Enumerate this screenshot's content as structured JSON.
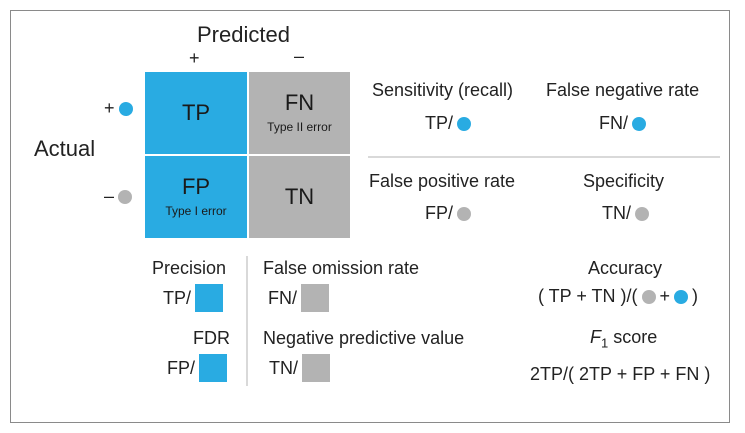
{
  "colors": {
    "positive": "#29abe2",
    "negative": "#b3b3b3",
    "divider": "#d9d9d9"
  },
  "matrix": {
    "predicted_label": "Predicted",
    "actual_label": "Actual",
    "pred_plus": "+",
    "pred_minus": "–",
    "act_plus": "+",
    "act_minus": "–",
    "cells": {
      "tp": {
        "label": "TP",
        "sublabel": ""
      },
      "fn": {
        "label": "FN",
        "sublabel": "Type II error"
      },
      "fp": {
        "label": "FP",
        "sublabel": "Type I error"
      },
      "tn": {
        "label": "TN",
        "sublabel": ""
      }
    }
  },
  "rates": {
    "sensitivity": {
      "title": "Sensitivity (recall)",
      "formula": "TP/"
    },
    "fnr": {
      "title": "False negative rate",
      "formula": "FN/"
    },
    "fpr": {
      "title": "False positive rate",
      "formula": "FP/"
    },
    "specificity": {
      "title": "Specificity",
      "formula": "TN/"
    }
  },
  "bottom": {
    "precision": {
      "title": "Precision",
      "formula": "TP/"
    },
    "fdr": {
      "title": "FDR",
      "formula": "FP/"
    },
    "for": {
      "title": "False omission rate",
      "formula": "FN/"
    },
    "npv": {
      "title": "Negative predictive value",
      "formula": "TN/"
    },
    "accuracy": {
      "title": "Accuracy",
      "formula_open": "( TP + TN )/(",
      "plus": "+",
      "formula_close": ")"
    },
    "f1": {
      "title_main": "F",
      "title_sub": "1",
      "title_rest": " score",
      "formula": "2TP/( 2TP + FP + FN )"
    }
  }
}
